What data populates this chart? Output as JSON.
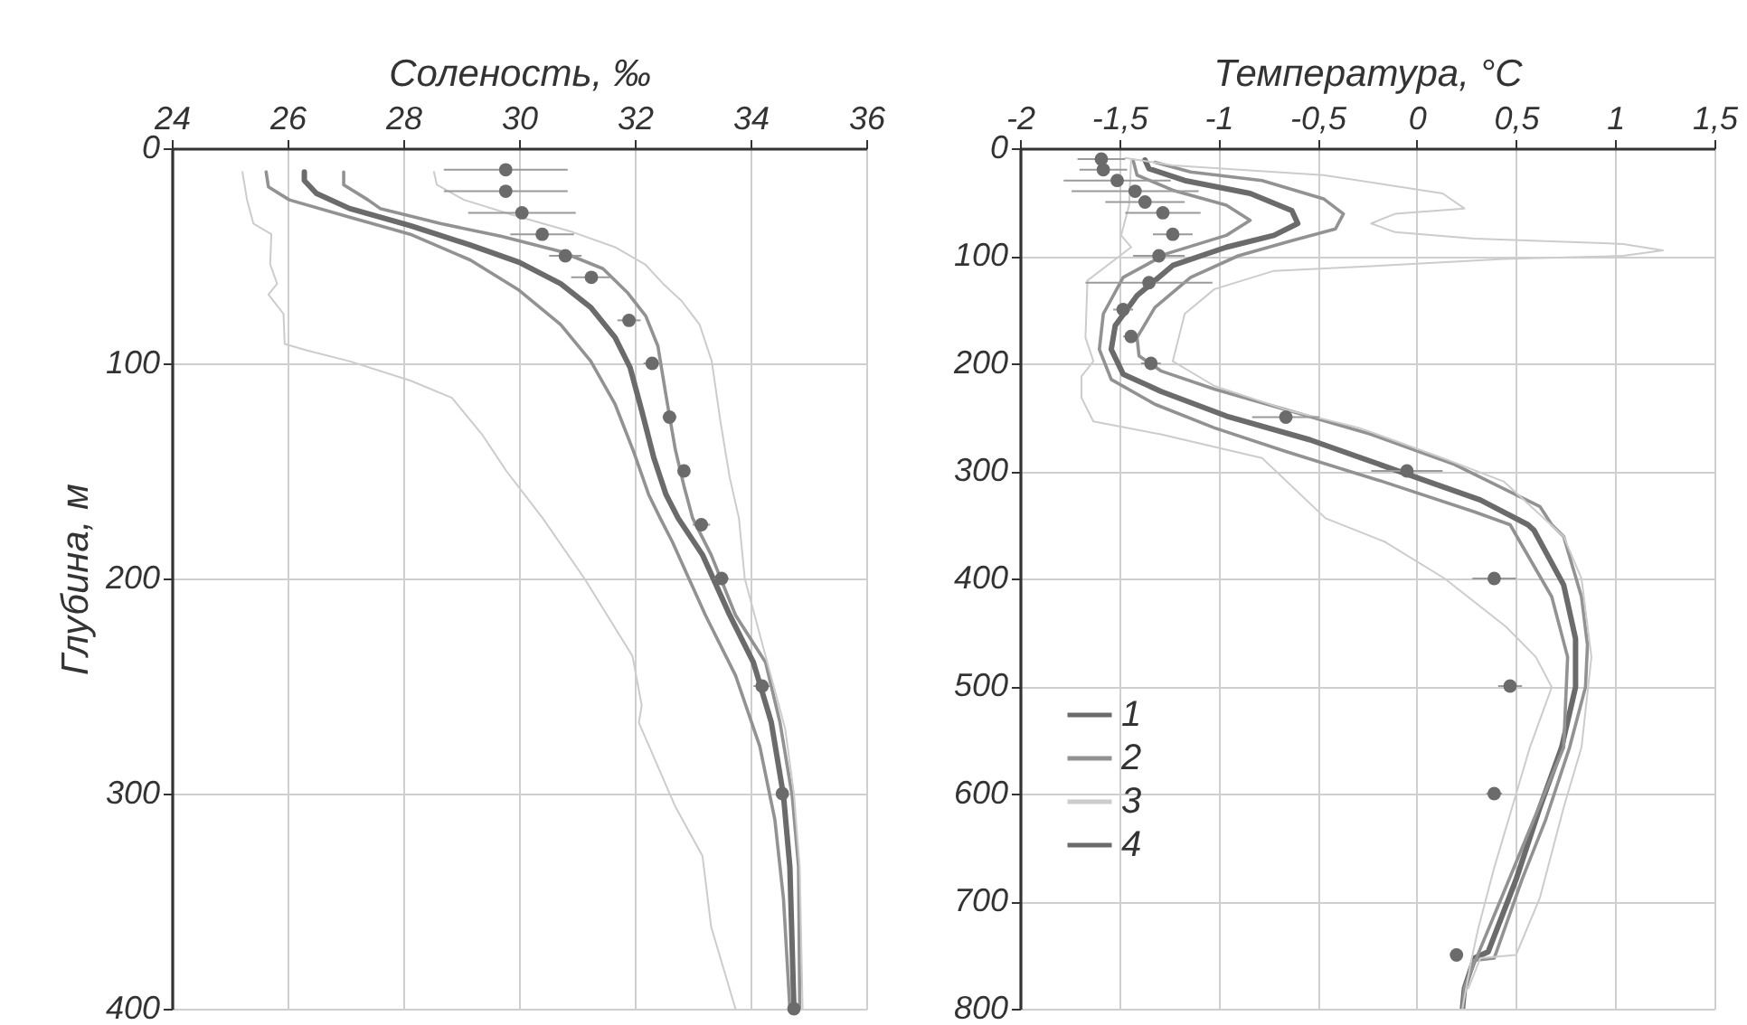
{
  "chart_data": [
    {
      "type": "line",
      "xlabel": "Соленость, ‰",
      "ylabel": "Глубина, м",
      "xlim": [
        24,
        36
      ],
      "xticks": [
        24,
        26,
        28,
        30,
        32,
        34,
        36
      ],
      "ylim": [
        400,
        0
      ],
      "yticks": [
        0,
        100,
        200,
        300,
        400
      ],
      "grid": true,
      "line_style": "solid",
      "series": [
        {
          "color": "#6b6b6b",
          "x": [
            26.29,
            26.29,
            26.5,
            27.07,
            28.12,
            29.16,
            30.0,
            30.72,
            31.24,
            31.66,
            31.92,
            32.12,
            32.33,
            32.54,
            32.75,
            33.17,
            33.64,
            34.05,
            34.36,
            34.57,
            34.68,
            34.75
          ],
          "values": [
            11,
            15,
            21,
            28,
            36,
            45,
            53,
            63,
            74,
            88,
            102,
            122,
            144,
            161,
            172,
            189,
            217,
            239,
            267,
            301,
            334,
            400
          ]
        },
        {
          "type": "line",
          "color": "#929292",
          "x": [
            25.63,
            25.67,
            26.03,
            27.07,
            28.12,
            29.16,
            30.0,
            30.72,
            31.24,
            31.66,
            31.98,
            32.24,
            32.44,
            32.65,
            33.22,
            33.74,
            34.16,
            34.42,
            34.57,
            34.68
          ],
          "values": [
            11,
            18,
            24,
            32,
            40,
            52,
            66,
            82,
            99,
            119,
            141,
            161,
            172,
            183,
            217,
            245,
            278,
            312,
            349,
            400
          ]
        },
        {
          "type": "line",
          "color": "#929292",
          "x": [
            26.97,
            26.97,
            27.39,
            27.6,
            28.64,
            29.7,
            30.72,
            31.45,
            31.87,
            32.19,
            32.4,
            32.54,
            32.7,
            32.85,
            33.0,
            33.32,
            33.74,
            34.26,
            34.51,
            34.72,
            34.83,
            34.85
          ],
          "values": [
            11,
            17,
            24,
            28,
            35,
            41,
            48,
            56,
            67,
            78,
            92,
            115,
            140,
            157,
            172,
            189,
            217,
            239,
            267,
            301,
            334,
            400
          ]
        },
        {
          "type": "line",
          "color": "#cccccc",
          "x": [
            25.22,
            25.3,
            25.41,
            25.72,
            25.7,
            25.82,
            25.67,
            25.93,
            25.95,
            26.34,
            27.07,
            28.12,
            28.84,
            29.36,
            29.78,
            30.41,
            31.13,
            31.96,
            32.12,
            32.07,
            32.7,
            33.17,
            33.32,
            33.74
          ],
          "values": [
            11,
            24,
            35,
            40,
            54,
            63,
            68,
            77,
            91,
            94,
            99,
            108,
            116,
            133,
            150,
            172,
            200,
            236,
            259,
            267,
            306,
            329,
            362,
            400
          ]
        },
        {
          "type": "line",
          "color": "#cccccc",
          "x": [
            28.53,
            28.58,
            29.05,
            29.89,
            30.93,
            31.66,
            32.18,
            32.49,
            32.81,
            33.12,
            33.33,
            33.48,
            33.64,
            33.8,
            33.9,
            34.3,
            34.6,
            34.75,
            34.85,
            34.9
          ],
          "values": [
            11,
            17,
            24,
            31,
            39,
            46,
            54,
            63,
            71,
            82,
            99,
            127,
            153,
            172,
            200,
            240,
            270,
            300,
            334,
            400
          ]
        },
        {
          "type": "scatter",
          "color": "#6b6b6b",
          "marker": "circle",
          "x": [
            29.77,
            29.77,
            30.05,
            30.4,
            30.8,
            31.25,
            31.9,
            32.3,
            32.6,
            32.85,
            33.15,
            33.5,
            34.2,
            34.55,
            34.75
          ],
          "values": [
            10,
            20,
            30,
            40,
            50,
            60,
            80,
            100,
            125,
            150,
            175,
            200,
            250,
            300,
            400
          ],
          "xerrors": [
            1.07,
            1.07,
            0.93,
            0.55,
            0.28,
            0.35,
            0.2,
            0.15,
            0.12,
            0.1,
            0.15,
            0.12,
            0.15,
            0.1,
            0.05
          ]
        }
      ]
    },
    {
      "type": "line",
      "xlabel": "Температура, °C",
      "xlim": [
        -2,
        1.5
      ],
      "xticks": [
        -2,
        {
          "value": -1.5,
          "label": "-1,5"
        },
        -1,
        {
          "value": -0.5,
          "label": "-0,5"
        },
        0,
        {
          "value": 0.5,
          "label": "0,5"
        },
        1,
        {
          "value": 1.5,
          "label": "1,5"
        }
      ],
      "ylim": [
        800,
        0
      ],
      "yticks": [
        0,
        100,
        200,
        300,
        400,
        500,
        600,
        700,
        800
      ],
      "grid": true,
      "line_style": "solid",
      "legend": "left",
      "series": [
        {
          "name": "1",
          "color": "#6b6b6b",
          "x": [
            -1.37,
            -1.35,
            -1.17,
            -0.84,
            -0.63,
            -0.6,
            -0.72,
            -0.96,
            -1.23,
            -1.41,
            -1.52,
            -1.54,
            -1.48,
            -1.29,
            -0.96,
            -0.54,
            -0.11,
            0.32,
            0.56,
            0.59,
            0.74,
            0.8,
            0.8,
            0.73,
            0.62,
            0.5,
            0.36,
            0.29,
            0.24,
            0.23
          ],
          "values": [
            11,
            19,
            30,
            42,
            58,
            70,
            81,
            92,
            109,
            137,
            165,
            187,
            210,
            226,
            249,
            271,
            299,
            327,
            350,
            355,
            406,
            456,
            501,
            557,
            613,
            680,
            747,
            753,
            781,
            800
          ]
        },
        {
          "type": "line",
          "name": "2",
          "color": "#929292",
          "x": [
            -1.43,
            -1.41,
            -1.23,
            -0.96,
            -0.84,
            -0.96,
            -1.26,
            -1.48,
            -1.58,
            -1.6,
            -1.54,
            -1.32,
            -1.02,
            -0.66,
            -0.17,
            0.29,
            0.47,
            0.68,
            0.76,
            0.74,
            0.59,
            0.44,
            0.3,
            0.24,
            0.23
          ],
          "values": [
            11,
            25,
            39,
            53,
            67,
            81,
            98,
            120,
            154,
            187,
            215,
            238,
            260,
            282,
            310,
            338,
            350,
            417,
            473,
            557,
            624,
            691,
            753,
            781,
            800
          ]
        },
        {
          "type": "line",
          "color": "#929292",
          "x": [
            -1.32,
            -1.14,
            -0.78,
            -0.47,
            -0.37,
            -0.41,
            -0.63,
            -0.9,
            -1.14,
            -1.32,
            -1.41,
            -1.4,
            -1.29,
            -1.02,
            -0.66,
            -0.23,
            0.19,
            0.62,
            0.68,
            0.74,
            0.83,
            0.86,
            0.85,
            0.77,
            0.65,
            0.53,
            0.39,
            0.29,
            0.24
          ],
          "values": [
            13,
            22,
            30,
            47,
            61,
            75,
            86,
            100,
            120,
            148,
            176,
            193,
            207,
            224,
            243,
            266,
            294,
            333,
            350,
            361,
            417,
            462,
            501,
            557,
            624,
            680,
            753,
            755,
            781
          ]
        },
        {
          "type": "line",
          "name": "3",
          "color": "#cccccc",
          "x": [
            -1.44,
            -1.45,
            -1.49,
            -1.44,
            -1.66,
            -1.67,
            -1.63,
            -1.69,
            -1.69,
            -1.63,
            -1.29,
            -0.78,
            -0.46,
            -0.16,
            0.14,
            0.45,
            0.6,
            0.68,
            0.57,
            0.48,
            0.39,
            0.31,
            0.27,
            0.23
          ],
          "values": [
            11,
            53,
            81,
            92,
            123,
            176,
            198,
            212,
            232,
            254,
            266,
            288,
            344,
            366,
            400,
            445,
            473,
            501,
            557,
            613,
            669,
            725,
            759,
            800
          ]
        },
        {
          "type": "line",
          "color": "#cccccc",
          "x": [
            -1.47,
            -1.23,
            -0.47,
            0.13,
            0.24,
            -0.11,
            -0.23,
            -0.11,
            0.29,
            1.04,
            1.24,
            1.04,
            0.44,
            -0.17,
            -0.72,
            -1.02,
            -1.17,
            -1.2,
            -1.23,
            -1.02,
            -0.66,
            -0.29,
            0.13,
            0.44,
            0.74,
            0.83,
            0.88,
            0.83,
            0.74,
            0.62,
            0.5,
            0.32,
            0.26
          ],
          "values": [
            9,
            16,
            25,
            42,
            56,
            61,
            70,
            78,
            84,
            89,
            95,
            100,
            103,
            109,
            114,
            131,
            154,
            176,
            198,
            221,
            243,
            260,
            288,
            310,
            361,
            400,
            473,
            557,
            613,
            697,
            750,
            753,
            781
          ]
        },
        {
          "type": "scatter",
          "name": "4",
          "color": "#6b6b6b",
          "marker": "circle",
          "x": [
            -1.59,
            -1.58,
            -1.51,
            -1.42,
            -1.37,
            -1.28,
            -1.23,
            -1.3,
            -1.35,
            -1.48,
            -1.44,
            -1.34,
            -0.66,
            -0.05,
            0.39,
            0.47,
            0.39,
            0.2
          ],
          "values": [
            10,
            20,
            30,
            40,
            50,
            60,
            80,
            100,
            125,
            150,
            175,
            200,
            250,
            300,
            400,
            500,
            600,
            750
          ],
          "xerrors": [
            0.12,
            0.12,
            0.27,
            0.32,
            0.2,
            0.19,
            0.1,
            0.13,
            0.32,
            0.05,
            0.04,
            0.05,
            0.17,
            0.18,
            0.11,
            0.06,
            0.04,
            0.03
          ]
        }
      ]
    }
  ]
}
